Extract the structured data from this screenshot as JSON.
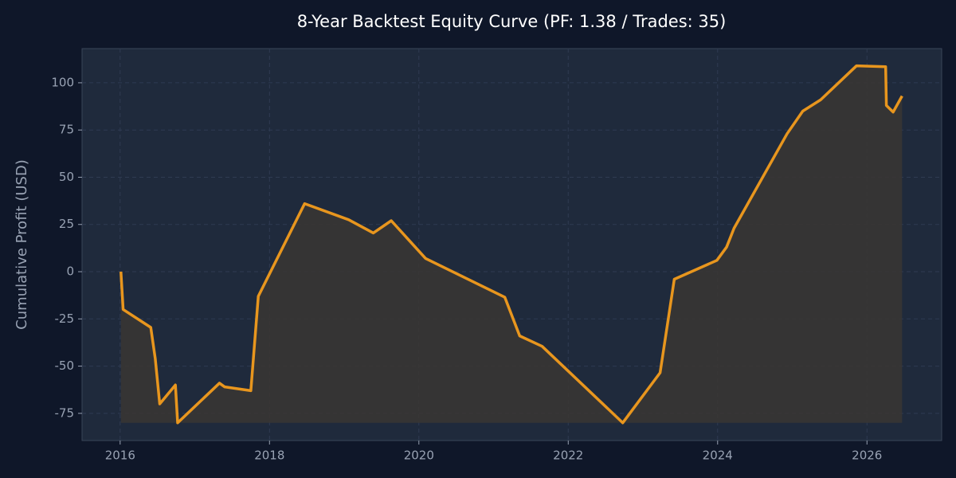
{
  "chart_data": {
    "type": "line",
    "title": "8-Year Backtest Equity Curve (PF: 1.38 / Trades: 35)",
    "ylabel": "Cumulative Profit (USD)",
    "x": [
      2016.01,
      2016.04,
      2016.41,
      2016.47,
      2016.53,
      2016.74,
      2016.77,
      2017.33,
      2017.4,
      2017.75,
      2017.85,
      2018.47,
      2019.06,
      2019.39,
      2019.63,
      2020.09,
      2021.15,
      2021.35,
      2021.65,
      2022.73,
      2023.23,
      2023.42,
      2023.99,
      2024.12,
      2024.22,
      2024.93,
      2025.14,
      2025.38,
      2025.86,
      2026.25,
      2026.26,
      2026.35,
      2026.47
    ],
    "series": [
      {
        "name": "Equity",
        "color": "#e8961e",
        "values": [
          0,
          -20,
          -29.5,
          -46,
          -70,
          -60,
          -80,
          -59,
          -61,
          -63,
          -13,
          36,
          27.5,
          20.5,
          27,
          7,
          -13.5,
          -34,
          -39.5,
          -80,
          -53.5,
          -4,
          6,
          13,
          23,
          73,
          85,
          91,
          109,
          108.5,
          88,
          84.5,
          93
        ]
      }
    ],
    "xlim": [
      2015.49,
      2027.0
    ],
    "xticks": [
      2016,
      2018,
      2020,
      2022,
      2024,
      2026
    ],
    "ylim": [
      -89.4,
      118.1
    ],
    "yticks": [
      -75,
      -50,
      -25,
      0,
      25,
      50,
      75,
      100
    ],
    "grid": true,
    "fill_color": "#3a3632"
  }
}
